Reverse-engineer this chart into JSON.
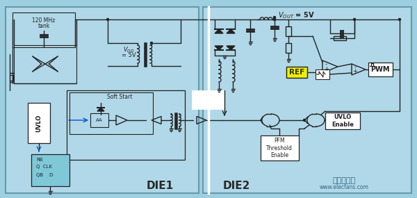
{
  "bg_color": "#9DCFDF",
  "panel_color": "#A8D8E8",
  "line_color": "#222222",
  "die1_label": "DIE1",
  "die2_label": "DIE2",
  "vout_label": "V",
  "vout_sub": "OUT",
  "vout_rest": " = 5V",
  "vdd_label1": "V",
  "vdd_sub": "DD",
  "vdd_label2": "= 5V",
  "mhz_line1": "120 MHz",
  "mhz_line2": "tank",
  "pwm_label": "PWM",
  "uvlo_enable_label": "UVLO\nEnable",
  "pfm_label": "PFM\nThreshold\nEnable",
  "ref_label": "REF",
  "soft_start_label": "Soft Start",
  "uvlo_box_label": "UVLO",
  "ff_line1": "RB",
  "ff_line2": "Q  CLK",
  "ff_line3": "QB    D",
  "watermark_cn": "电子发烧友",
  "watermark": "www.elecfans.com"
}
